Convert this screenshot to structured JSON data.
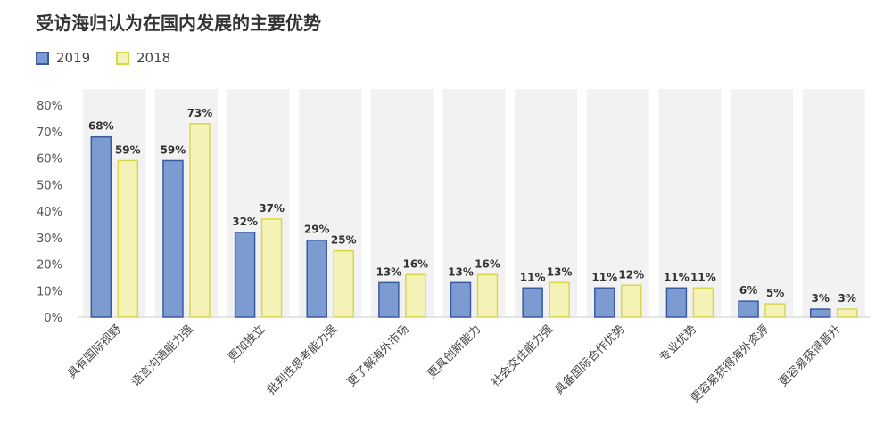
{
  "chart_data": {
    "type": "bar",
    "title": "受访海归认为在国内发展的主要优势",
    "categories": [
      "具有国际视野",
      "语言沟通能力强",
      "更加独立",
      "批判性思考能力强",
      "更了解海外市场",
      "更具创新能力",
      "社会交往能力强",
      "具备国际合作优势",
      "专业优势",
      "更容易获得海外资源",
      "更容易获得晋升"
    ],
    "series": [
      {
        "name": "2019",
        "values": [
          68,
          59,
          32,
          29,
          13,
          13,
          11,
          11,
          11,
          6,
          3
        ],
        "color": "#7b9bd1",
        "stroke": "#3b5aa0"
      },
      {
        "name": "2018",
        "values": [
          59,
          73,
          37,
          25,
          16,
          16,
          13,
          12,
          11,
          5,
          3
        ],
        "color": "#f5f2b8",
        "stroke": "#d9d84a"
      }
    ],
    "value_suffix": "%",
    "ylim": [
      0,
      80
    ],
    "yticks": [
      0,
      10,
      20,
      30,
      40,
      50,
      60,
      70,
      80
    ],
    "ytick_labels": [
      "0%",
      "10%",
      "20%",
      "30%",
      "40%",
      "50%",
      "60%",
      "70%",
      "80%"
    ],
    "xlabel": "",
    "ylabel": "",
    "legend_position": "top-left",
    "grid": false,
    "background_bands": true
  }
}
